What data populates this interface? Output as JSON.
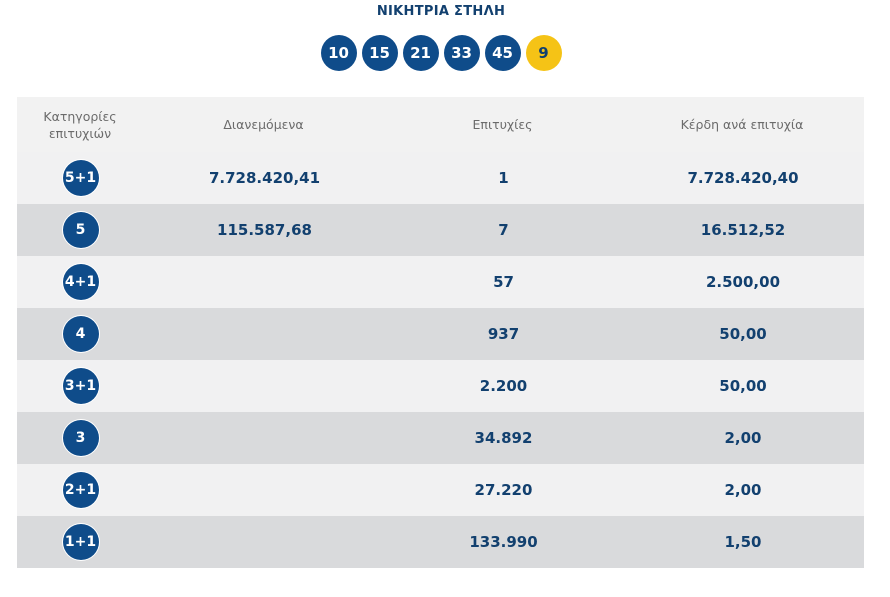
{
  "winning_column": {
    "title": "ΝΙΚΗΤΡΙΑ ΣΤΗΛΗ",
    "numbers": [
      "10",
      "15",
      "21",
      "33",
      "45"
    ],
    "bonus": "9"
  },
  "table": {
    "headers": {
      "category": "Κατηγορίες επιτυχιών",
      "distributed": "Διανεμόμενα",
      "winners": "Επιτυχίες",
      "prize_per_winner": "Κέρδη ανά επιτυχία"
    },
    "rows": [
      {
        "category": "5+1",
        "distributed": "7.728.420,41",
        "winners": "1",
        "prize": "7.728.420,40"
      },
      {
        "category": "5",
        "distributed": "115.587,68",
        "winners": "7",
        "prize": "16.512,52"
      },
      {
        "category": "4+1",
        "distributed": "",
        "winners": "57",
        "prize": "2.500,00"
      },
      {
        "category": "4",
        "distributed": "",
        "winners": "937",
        "prize": "50,00"
      },
      {
        "category": "3+1",
        "distributed": "",
        "winners": "2.200",
        "prize": "50,00"
      },
      {
        "category": "3",
        "distributed": "",
        "winners": "34.892",
        "prize": "2,00"
      },
      {
        "category": "2+1",
        "distributed": "",
        "winners": "27.220",
        "prize": "2,00"
      },
      {
        "category": "1+1",
        "distributed": "",
        "winners": "133.990",
        "prize": "1,50"
      }
    ]
  },
  "colors": {
    "primary": "#0f4c8a",
    "text": "#12406f",
    "bonus": "#f5c316",
    "row_light": "#f1f1f2",
    "row_dark": "#d9dadc"
  }
}
